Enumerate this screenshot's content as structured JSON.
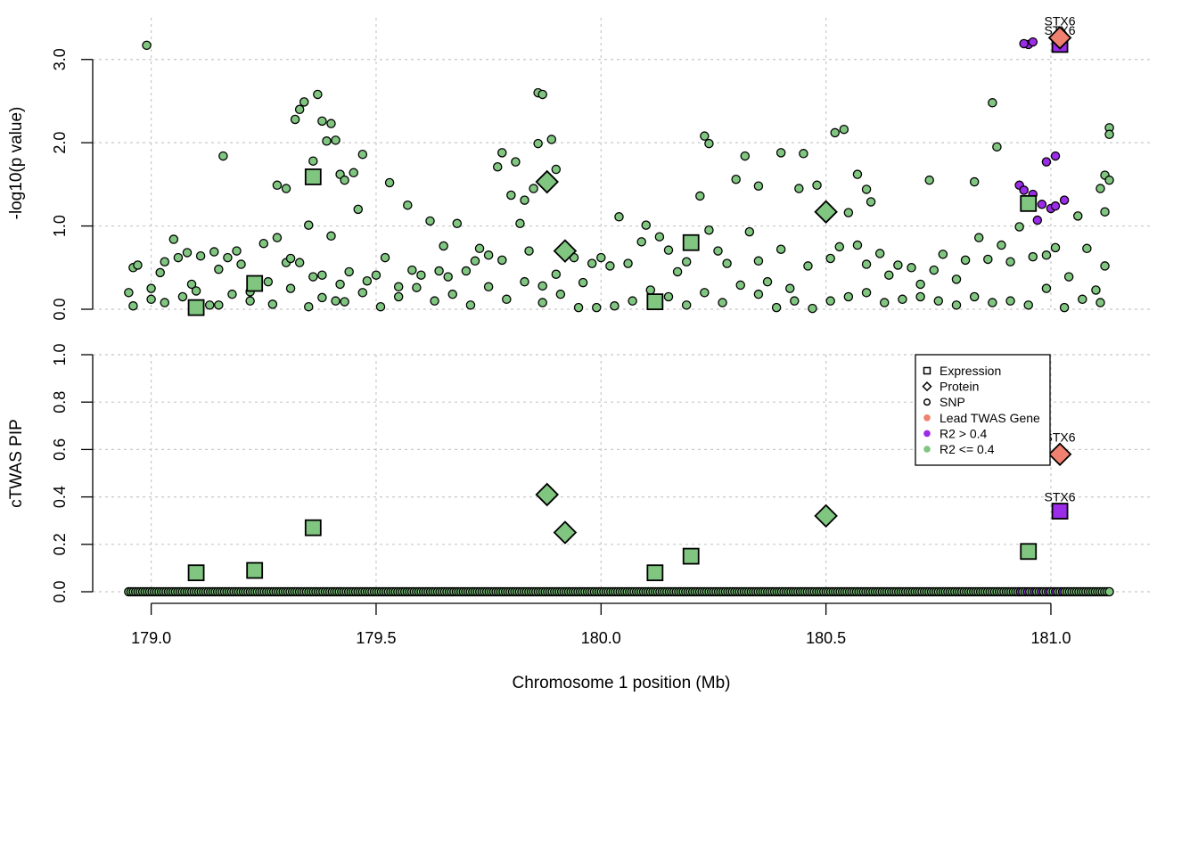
{
  "colors": {
    "lead": "#F08070",
    "high_r2": "#9B2CE8",
    "low_r2": "#80C680",
    "stroke": "#000000",
    "grid": "#C8C8C8"
  },
  "x_axis": {
    "title": "Chromosome 1 position (Mb)",
    "range": [
      178.87,
      181.22
    ],
    "ticks": [
      "179.0",
      "179.5",
      "180.0",
      "180.5",
      "181.0"
    ],
    "tick_values": [
      179.0,
      179.5,
      180.0,
      180.5,
      181.0
    ]
  },
  "legend": {
    "items": [
      {
        "label": "Expression",
        "shape": "square",
        "fill": "none"
      },
      {
        "label": "Protein",
        "shape": "diamond",
        "fill": "none"
      },
      {
        "label": "SNP",
        "shape": "circle",
        "fill": "none"
      },
      {
        "label": "Lead TWAS Gene",
        "shape": "dot",
        "fill": "#F08070"
      },
      {
        "label": "R2 > 0.4",
        "shape": "dot",
        "fill": "#9B2CE8"
      },
      {
        "label": "R2 <= 0.4",
        "shape": "dot",
        "fill": "#80C680"
      }
    ]
  },
  "chart_data": [
    {
      "type": "scatter",
      "panel": "top",
      "ylabel": "-log10(p value)",
      "ylim": [
        0,
        3.5
      ],
      "yticks": [
        "0.0",
        "1.0",
        "2.0",
        "3.0"
      ],
      "ytick_values": [
        0,
        1,
        2,
        3
      ],
      "grid": true,
      "genes": [
        {
          "x": 179.1,
          "y": 0.02,
          "shape": "square",
          "color": "low_r2"
        },
        {
          "x": 179.23,
          "y": 0.31,
          "shape": "square",
          "color": "low_r2"
        },
        {
          "x": 179.36,
          "y": 1.59,
          "shape": "square",
          "color": "low_r2"
        },
        {
          "x": 179.88,
          "y": 1.53,
          "shape": "diamond",
          "color": "low_r2"
        },
        {
          "x": 179.92,
          "y": 0.7,
          "shape": "diamond",
          "color": "low_r2"
        },
        {
          "x": 180.12,
          "y": 0.09,
          "shape": "square",
          "color": "low_r2"
        },
        {
          "x": 180.2,
          "y": 0.8,
          "shape": "square",
          "color": "low_r2"
        },
        {
          "x": 180.5,
          "y": 1.17,
          "shape": "diamond",
          "color": "low_r2"
        },
        {
          "x": 180.95,
          "y": 1.27,
          "shape": "square",
          "color": "low_r2"
        },
        {
          "x": 181.02,
          "y": 3.18,
          "shape": "square",
          "color": "high_r2",
          "label": "STX6"
        },
        {
          "x": 181.02,
          "y": 3.26,
          "shape": "diamond",
          "color": "lead",
          "label": "STX6"
        }
      ],
      "snps_high_r2": [
        [
          180.93,
          1.49
        ],
        [
          180.94,
          1.43
        ],
        [
          180.96,
          1.38
        ],
        [
          180.97,
          1.07
        ],
        [
          180.98,
          1.26
        ],
        [
          180.99,
          1.77
        ],
        [
          181.0,
          1.21
        ],
        [
          181.01,
          1.24
        ],
        [
          181.01,
          1.84
        ],
        [
          181.03,
          1.31
        ],
        [
          180.95,
          3.18
        ],
        [
          180.96,
          3.21
        ],
        [
          180.94,
          3.19
        ]
      ],
      "snps_low_r2": [
        [
          178.99,
          3.17
        ],
        [
          179.16,
          1.84
        ],
        [
          179.32,
          2.28
        ],
        [
          179.33,
          2.4
        ],
        [
          179.34,
          2.49
        ],
        [
          179.37,
          2.58
        ],
        [
          179.38,
          2.26
        ],
        [
          179.4,
          2.23
        ],
        [
          179.36,
          1.78
        ],
        [
          179.42,
          1.62
        ],
        [
          179.43,
          1.55
        ],
        [
          179.45,
          1.64
        ],
        [
          179.47,
          1.86
        ],
        [
          179.28,
          1.49
        ],
        [
          179.3,
          1.45
        ],
        [
          179.39,
          2.02
        ],
        [
          179.41,
          2.03
        ],
        [
          179.86,
          2.6
        ],
        [
          179.87,
          2.58
        ],
        [
          179.89,
          2.04
        ],
        [
          179.86,
          1.99
        ],
        [
          179.78,
          1.88
        ],
        [
          179.81,
          1.77
        ],
        [
          179.85,
          1.45
        ],
        [
          179.77,
          1.71
        ],
        [
          179.83,
          1.31
        ],
        [
          179.9,
          1.68
        ],
        [
          180.23,
          2.08
        ],
        [
          180.24,
          1.99
        ],
        [
          180.32,
          1.84
        ],
        [
          180.35,
          1.48
        ],
        [
          180.4,
          1.88
        ],
        [
          180.45,
          1.87
        ],
        [
          180.52,
          2.12
        ],
        [
          180.54,
          2.16
        ],
        [
          180.57,
          1.62
        ],
        [
          180.59,
          1.44
        ],
        [
          180.6,
          1.29
        ],
        [
          180.87,
          2.48
        ],
        [
          180.88,
          1.95
        ],
        [
          180.83,
          1.53
        ],
        [
          180.73,
          1.55
        ],
        [
          181.13,
          2.18
        ],
        [
          181.13,
          2.1
        ],
        [
          181.12,
          1.61
        ],
        [
          181.13,
          1.55
        ],
        [
          181.11,
          1.45
        ],
        [
          181.12,
          1.17
        ],
        [
          178.96,
          0.5
        ],
        [
          178.97,
          0.53
        ],
        [
          178.95,
          0.2
        ],
        [
          178.96,
          0.04
        ],
        [
          179.0,
          0.25
        ],
        [
          179.02,
          0.44
        ],
        [
          179.03,
          0.57
        ],
        [
          179.05,
          0.84
        ],
        [
          179.06,
          0.62
        ],
        [
          179.08,
          0.68
        ],
        [
          179.09,
          0.3
        ],
        [
          179.11,
          0.64
        ],
        [
          179.13,
          0.05
        ],
        [
          179.14,
          0.69
        ],
        [
          179.15,
          0.48
        ],
        [
          179.17,
          0.62
        ],
        [
          179.19,
          0.7
        ],
        [
          179.2,
          0.54
        ],
        [
          179.22,
          0.21
        ],
        [
          179.25,
          0.79
        ],
        [
          179.26,
          0.33
        ],
        [
          179.28,
          0.86
        ],
        [
          179.3,
          0.56
        ],
        [
          179.31,
          0.61
        ],
        [
          179.33,
          0.56
        ],
        [
          179.35,
          1.01
        ],
        [
          179.36,
          0.39
        ],
        [
          179.38,
          0.41
        ],
        [
          179.4,
          0.88
        ],
        [
          179.41,
          0.1
        ],
        [
          179.42,
          0.3
        ],
        [
          179.44,
          0.45
        ],
        [
          179.46,
          1.2
        ],
        [
          179.48,
          0.34
        ],
        [
          179.5,
          0.41
        ],
        [
          179.52,
          0.62
        ],
        [
          179.53,
          1.52
        ],
        [
          179.55,
          0.27
        ],
        [
          179.57,
          1.25
        ],
        [
          179.58,
          0.47
        ],
        [
          179.6,
          0.41
        ],
        [
          179.62,
          1.06
        ],
        [
          179.64,
          0.46
        ],
        [
          179.65,
          0.76
        ],
        [
          179.66,
          0.39
        ],
        [
          179.68,
          1.03
        ],
        [
          179.7,
          0.46
        ],
        [
          179.72,
          0.58
        ],
        [
          179.73,
          0.73
        ],
        [
          179.75,
          0.65
        ],
        [
          179.78,
          0.59
        ],
        [
          179.8,
          1.37
        ],
        [
          179.82,
          1.03
        ],
        [
          179.84,
          0.7
        ],
        [
          179.87,
          0.28
        ],
        [
          179.9,
          0.42
        ],
        [
          179.92,
          0.75
        ],
        [
          179.94,
          0.62
        ],
        [
          179.96,
          0.32
        ],
        [
          179.98,
          0.55
        ],
        [
          180.0,
          0.62
        ],
        [
          180.02,
          0.52
        ],
        [
          180.04,
          1.11
        ],
        [
          180.06,
          0.55
        ],
        [
          180.09,
          0.81
        ],
        [
          180.1,
          1.01
        ],
        [
          180.13,
          0.87
        ],
        [
          180.15,
          0.71
        ],
        [
          180.17,
          0.45
        ],
        [
          180.19,
          0.57
        ],
        [
          180.22,
          1.36
        ],
        [
          180.24,
          0.95
        ],
        [
          180.26,
          0.7
        ],
        [
          180.28,
          0.55
        ],
        [
          180.3,
          1.56
        ],
        [
          180.33,
          0.93
        ],
        [
          180.35,
          0.58
        ],
        [
          180.37,
          0.33
        ],
        [
          180.4,
          0.72
        ],
        [
          180.42,
          0.25
        ],
        [
          180.44,
          1.45
        ],
        [
          180.46,
          0.52
        ],
        [
          180.48,
          1.49
        ],
        [
          180.51,
          0.61
        ],
        [
          180.53,
          0.75
        ],
        [
          180.55,
          1.16
        ],
        [
          180.57,
          0.77
        ],
        [
          180.59,
          0.54
        ],
        [
          180.62,
          0.67
        ],
        [
          180.64,
          0.41
        ],
        [
          180.66,
          0.53
        ],
        [
          180.69,
          0.5
        ],
        [
          180.71,
          0.3
        ],
        [
          180.74,
          0.47
        ],
        [
          180.76,
          0.66
        ],
        [
          180.79,
          0.36
        ],
        [
          180.81,
          0.59
        ],
        [
          180.84,
          0.86
        ],
        [
          180.86,
          0.6
        ],
        [
          180.89,
          0.77
        ],
        [
          180.91,
          0.57
        ],
        [
          180.93,
          0.99
        ],
        [
          180.96,
          0.63
        ],
        [
          180.99,
          0.65
        ],
        [
          181.01,
          0.74
        ],
        [
          181.04,
          0.39
        ],
        [
          181.06,
          1.12
        ],
        [
          181.08,
          0.73
        ],
        [
          181.1,
          0.23
        ],
        [
          181.12,
          0.52
        ],
        [
          179.0,
          0.12
        ],
        [
          179.03,
          0.08
        ],
        [
          179.07,
          0.15
        ],
        [
          179.1,
          0.22
        ],
        [
          179.15,
          0.05
        ],
        [
          179.18,
          0.18
        ],
        [
          179.22,
          0.1
        ],
        [
          179.27,
          0.06
        ],
        [
          179.31,
          0.25
        ],
        [
          179.35,
          0.03
        ],
        [
          179.38,
          0.14
        ],
        [
          179.43,
          0.09
        ],
        [
          179.47,
          0.2
        ],
        [
          179.51,
          0.03
        ],
        [
          179.55,
          0.15
        ],
        [
          179.59,
          0.26
        ],
        [
          179.63,
          0.1
        ],
        [
          179.67,
          0.18
        ],
        [
          179.71,
          0.05
        ],
        [
          179.75,
          0.27
        ],
        [
          179.79,
          0.12
        ],
        [
          179.83,
          0.33
        ],
        [
          179.87,
          0.08
        ],
        [
          179.91,
          0.18
        ],
        [
          179.95,
          0.02
        ],
        [
          179.99,
          0.02
        ],
        [
          180.03,
          0.04
        ],
        [
          180.07,
          0.1
        ],
        [
          180.11,
          0.23
        ],
        [
          180.15,
          0.15
        ],
        [
          180.19,
          0.05
        ],
        [
          180.23,
          0.2
        ],
        [
          180.27,
          0.08
        ],
        [
          180.31,
          0.29
        ],
        [
          180.35,
          0.18
        ],
        [
          180.39,
          0.02
        ],
        [
          180.43,
          0.1
        ],
        [
          180.47,
          0.01
        ],
        [
          180.51,
          0.1
        ],
        [
          180.55,
          0.15
        ],
        [
          180.59,
          0.2
        ],
        [
          180.63,
          0.08
        ],
        [
          180.67,
          0.12
        ],
        [
          180.71,
          0.15
        ],
        [
          180.75,
          0.1
        ],
        [
          180.79,
          0.05
        ],
        [
          180.83,
          0.15
        ],
        [
          180.87,
          0.08
        ],
        [
          180.91,
          0.1
        ],
        [
          180.95,
          0.05
        ],
        [
          180.99,
          0.25
        ],
        [
          181.03,
          0.02
        ],
        [
          181.07,
          0.12
        ],
        [
          181.11,
          0.08
        ]
      ]
    },
    {
      "type": "scatter",
      "panel": "bottom",
      "ylabel": "cTWAS PIP",
      "ylim": [
        0,
        1
      ],
      "yticks": [
        "0.0",
        "0.2",
        "0.4",
        "0.6",
        "0.8",
        "1.0"
      ],
      "ytick_values": [
        0,
        0.2,
        0.4,
        0.6,
        0.8,
        1.0
      ],
      "grid": true,
      "genes": [
        {
          "x": 179.1,
          "y": 0.08,
          "shape": "square",
          "color": "low_r2"
        },
        {
          "x": 179.23,
          "y": 0.09,
          "shape": "square",
          "color": "low_r2"
        },
        {
          "x": 179.36,
          "y": 0.27,
          "shape": "square",
          "color": "low_r2"
        },
        {
          "x": 179.88,
          "y": 0.41,
          "shape": "diamond",
          "color": "low_r2"
        },
        {
          "x": 179.92,
          "y": 0.25,
          "shape": "diamond",
          "color": "low_r2"
        },
        {
          "x": 180.12,
          "y": 0.08,
          "shape": "square",
          "color": "low_r2"
        },
        {
          "x": 180.2,
          "y": 0.15,
          "shape": "square",
          "color": "low_r2"
        },
        {
          "x": 180.5,
          "y": 0.32,
          "shape": "diamond",
          "color": "low_r2"
        },
        {
          "x": 180.95,
          "y": 0.17,
          "shape": "square",
          "color": "low_r2"
        },
        {
          "x": 181.02,
          "y": 0.34,
          "shape": "square",
          "color": "high_r2",
          "label": "STX6"
        },
        {
          "x": 181.02,
          "y": 0.58,
          "shape": "diamond",
          "color": "lead",
          "label": "STX6"
        }
      ],
      "snp_range": [
        178.95,
        181.13
      ],
      "snp_count": 420,
      "snp_high_r2_range": [
        180.93,
        181.03
      ],
      "snp_y": 0
    }
  ]
}
